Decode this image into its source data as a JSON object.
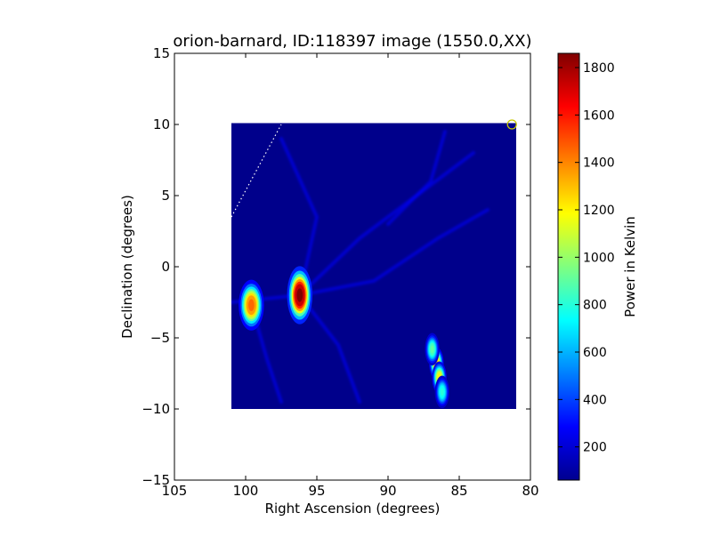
{
  "chart_data": {
    "type": "heatmap",
    "title": "orion-barnard, ID:118397 image (1550.0,XX)",
    "xlabel": "Right Ascension (degrees)",
    "ylabel": "Declination (degrees)",
    "xlim": [
      105,
      80
    ],
    "ylim": [
      -15,
      15
    ],
    "x_ticks": [
      105,
      100,
      95,
      90,
      85,
      80
    ],
    "x_tick_labels": [
      "105",
      "100",
      "95",
      "90",
      "85",
      "80"
    ],
    "y_ticks": [
      15,
      10,
      5,
      0,
      -5,
      -10,
      -15
    ],
    "y_tick_labels": [
      "15",
      "10",
      "5",
      "0",
      "−5",
      "−10",
      "−15"
    ],
    "colormap": "jet",
    "colorbar": {
      "label": "Power in Kelvin",
      "range": [
        60,
        1860
      ],
      "ticks": [
        200,
        400,
        600,
        800,
        1000,
        1200,
        1400,
        1600,
        1800
      ],
      "tick_labels": [
        "200",
        "400",
        "600",
        "800",
        "1000",
        "1200",
        "1400",
        "1600",
        "1800"
      ]
    },
    "image_extent": {
      "ra": [
        101.0,
        81.0
      ],
      "dec": [
        -10.0,
        10.1
      ]
    },
    "background_level": 80,
    "sources": [
      {
        "ra": 96.2,
        "dec": -2.0,
        "peak": 1860,
        "sigma_ra": 0.35,
        "sigma_dec": 0.8
      },
      {
        "ra": 99.6,
        "dec": -2.7,
        "peak": 1450,
        "sigma_ra": 0.35,
        "sigma_dec": 0.7
      },
      {
        "ra": 86.6,
        "dec": -6.8,
        "peak": 1300,
        "sigma_ra": 0.2,
        "sigma_dec": 0.45
      },
      {
        "ra": 86.4,
        "dec": -7.8,
        "peak": 1200,
        "sigma_ra": 0.2,
        "sigma_dec": 0.45
      },
      {
        "ra": 86.9,
        "dec": -5.8,
        "peak": 900,
        "sigma_ra": 0.2,
        "sigma_dec": 0.45
      },
      {
        "ra": 86.2,
        "dec": -8.8,
        "peak": 800,
        "sigma_ra": 0.2,
        "sigma_dec": 0.45
      }
    ],
    "marker": {
      "type": "circle",
      "ra": 81.3,
      "dec": 10.0,
      "color": "#c8c800"
    },
    "dotted_line": {
      "from": [
        101.0,
        3.5
      ],
      "to": [
        97.5,
        10.0
      ],
      "color": "#ffffff"
    }
  }
}
